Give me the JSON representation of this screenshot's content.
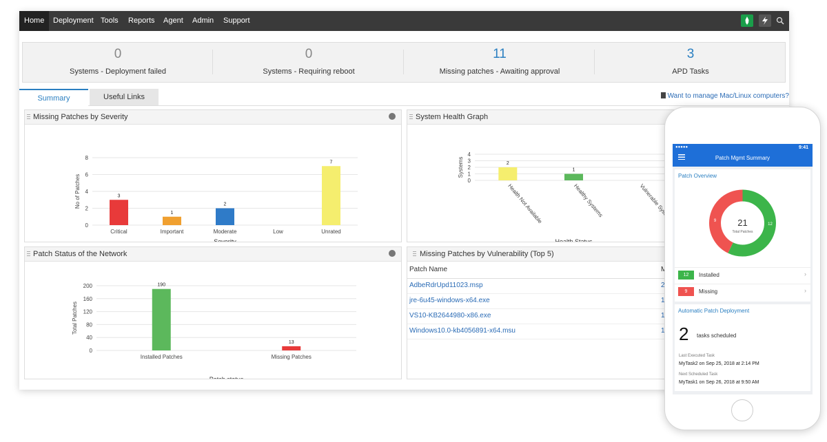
{
  "nav": {
    "items": [
      "Home",
      "Deployment",
      "Tools",
      "Reports",
      "Agent",
      "Admin",
      "Support"
    ],
    "active": "Home",
    "icons": [
      "rocket-icon",
      "lightning-icon",
      "search-icon"
    ],
    "accent": "#1a9e4a"
  },
  "summary": [
    {
      "value": "0",
      "label": "Systems - Deployment failed",
      "color": "#888888"
    },
    {
      "value": "0",
      "label": "Systems - Requiring reboot",
      "color": "#888888"
    },
    {
      "value": "11",
      "label": "Missing patches - Awaiting approval",
      "color": "#2a7fc1"
    },
    {
      "value": "3",
      "label": "APD Tasks",
      "color": "#2a7fc1"
    }
  ],
  "tabs": [
    "Summary",
    "Useful Links"
  ],
  "mac_link": "Want to manage Mac/Linux computers?",
  "panels": {
    "severity_title": "Missing Patches by Severity",
    "health_title": "System Health Graph",
    "status_title": "Patch Status of the Network",
    "vuln_title": "Missing Patches by Vulnerability (Top 5)"
  },
  "chart_data": [
    {
      "type": "bar",
      "categories": [
        "Critical",
        "Important",
        "Moderate",
        "Low",
        "Unrated"
      ],
      "values": [
        3,
        1,
        2,
        0,
        7
      ],
      "colors": [
        "#e83a3a",
        "#f0a030",
        "#2f7bc8",
        "#cccccc",
        "#f5ee6e"
      ],
      "xlabel": "Severity",
      "ylabel": "No of Patches",
      "ylim": [
        0,
        8
      ],
      "yticks": [
        0,
        2,
        4,
        6,
        8
      ]
    },
    {
      "type": "bar",
      "categories": [
        "Health Not Available",
        "Healthy Systems",
        "Vulnerable Systems"
      ],
      "values": [
        2,
        1,
        0
      ],
      "colors": [
        "#f5ee6e",
        "#5cb85c",
        "#e83a3a"
      ],
      "xlabel": "Health Status",
      "ylabel": "Systems",
      "ylim": [
        0,
        4
      ],
      "yticks": [
        0,
        1,
        2,
        3,
        4
      ]
    },
    {
      "type": "bar",
      "categories": [
        "Installed Patches",
        "Missing Patches"
      ],
      "values": [
        190,
        13
      ],
      "colors": [
        "#5cb85c",
        "#e83a3a"
      ],
      "xlabel": "Patch status",
      "ylabel": "Total Patches",
      "ylim": [
        0,
        200
      ],
      "yticks": [
        0,
        40,
        80,
        120,
        160,
        200
      ]
    }
  ],
  "vuln_table": {
    "headers": [
      "Patch Name",
      "M"
    ],
    "rows": [
      {
        "name": "AdbeRdrUpd11023.msp",
        "m": "2"
      },
      {
        "name": "jre-6u45-windows-x64.exe",
        "m": "1"
      },
      {
        "name": "VS10-KB2644980-x86.exe",
        "m": "1"
      },
      {
        "name": "Windows10.0-kb4056891-x64.msu",
        "m": "1"
      }
    ]
  },
  "phone": {
    "status_time": "9:41",
    "status_signal": "●●●●● ",
    "title": "Patch Mgmt Summary",
    "overview_title": "Patch Overview",
    "total": "21",
    "total_label": "Total Patches",
    "installed": 12,
    "missing": 9,
    "installed_label": "Installed",
    "missing_label": "Missing",
    "installed_color": "#3cb54a",
    "missing_color": "#ef5350",
    "apd_title": "Automatic Patch Deployment",
    "apd_count": "2",
    "apd_text": "tasks scheduled",
    "last_label": "Last Executed Task",
    "last_value": "MyTask2 on Sep 25, 2018 at 2:14 PM",
    "next_label": "Next Scheduled Task",
    "next_value": "MyTask1 on Sep 26, 2018 at 9:50 AM",
    "accent": "#1e6fd8"
  }
}
